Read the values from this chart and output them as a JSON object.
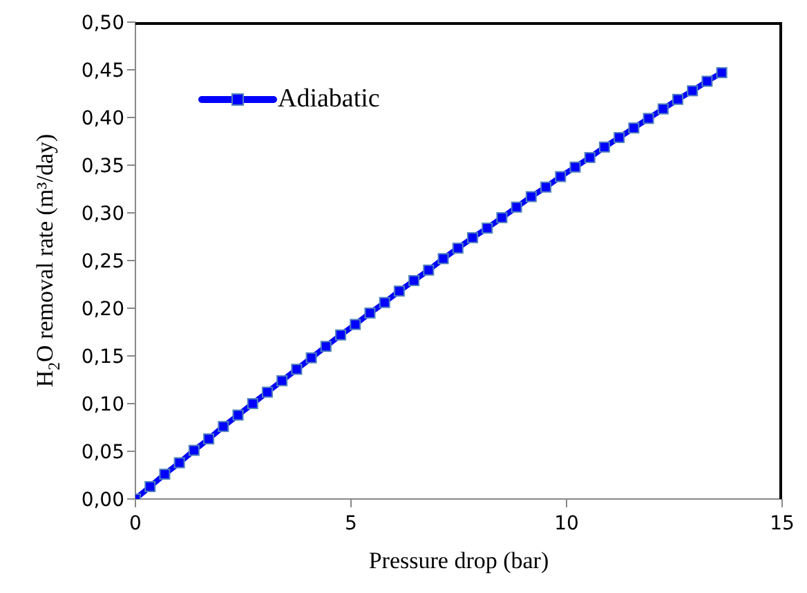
{
  "chart_data": {
    "type": "line",
    "xlabel": "Pressure drop (bar)",
    "ylabel": "H$_{2}$O  removal rate (m³/day)",
    "x": [
      0,
      0.34,
      0.68,
      1.02,
      1.36,
      1.7,
      2.04,
      2.38,
      2.72,
      3.06,
      3.4,
      3.74,
      4.08,
      4.42,
      4.76,
      5.1,
      5.44,
      5.78,
      6.12,
      6.46,
      6.8,
      7.14,
      7.48,
      7.82,
      8.16,
      8.5,
      8.84,
      9.18,
      9.52,
      9.86,
      10.2,
      10.54,
      10.88,
      11.22,
      11.56,
      11.9,
      12.24,
      12.58,
      12.92,
      13.26,
      13.6
    ],
    "series": [
      {
        "name": "Adiabatic",
        "color": "#0000ff",
        "values": [
          0,
          0.013,
          0.026,
          0.038,
          0.051,
          0.063,
          0.076,
          0.088,
          0.1,
          0.112,
          0.124,
          0.136,
          0.148,
          0.16,
          0.172,
          0.183,
          0.195,
          0.206,
          0.218,
          0.229,
          0.24,
          0.252,
          0.263,
          0.274,
          0.284,
          0.295,
          0.306,
          0.317,
          0.327,
          0.338,
          0.348,
          0.358,
          0.369,
          0.379,
          0.389,
          0.399,
          0.409,
          0.419,
          0.428,
          0.438,
          0.447
        ]
      }
    ],
    "xlim": [
      0,
      15
    ],
    "xticks": [
      0,
      5,
      10,
      15
    ],
    "ylim": [
      0,
      0.5
    ],
    "yticks": [
      {
        "value": 0,
        "label": "0,00"
      },
      {
        "value": 0.05,
        "label": "0,05"
      },
      {
        "value": 0.1,
        "label": "0,10"
      },
      {
        "value": 0.15,
        "label": "0,15"
      },
      {
        "value": 0.2,
        "label": "0,20"
      },
      {
        "value": 0.25,
        "label": "0,25"
      },
      {
        "value": 0.3,
        "label": "0,30"
      },
      {
        "value": 0.35,
        "label": "0,35"
      },
      {
        "value": 0.4,
        "label": "0,40"
      },
      {
        "value": 0.45,
        "label": "0,45"
      },
      {
        "value": 0.5,
        "label": "0,50"
      }
    ],
    "grid": false,
    "legend": "top left",
    "marker": "square",
    "line_style": "solid"
  }
}
